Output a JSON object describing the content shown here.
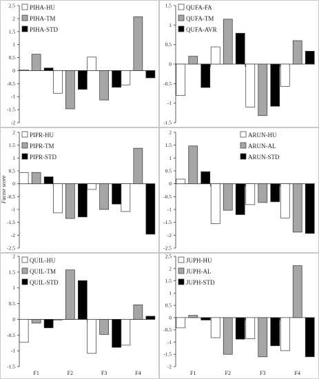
{
  "ylabel": "Factor score",
  "chart_data": [
    {
      "type": "bar",
      "categories": [
        "F1",
        "F2",
        "F3",
        "F4"
      ],
      "ylim": [
        -2,
        2.5
      ],
      "yticks": [
        -2,
        -1.5,
        -1,
        -0.5,
        0,
        0.5,
        1,
        1.5,
        2,
        2.5
      ],
      "legend_position": "top-left",
      "series": [
        {
          "name": "PIHA-HU",
          "color": "#ffffff",
          "values": [
            0.03,
            -0.87,
            0.52,
            -0.55
          ]
        },
        {
          "name": "PIHA-TM",
          "color": "#a6a6a6",
          "values": [
            0.63,
            -1.47,
            -1.13,
            2.07
          ]
        },
        {
          "name": "PIHA-STD",
          "color": "#000000",
          "values": [
            0.1,
            -0.72,
            -0.64,
            -0.28
          ]
        }
      ]
    },
    {
      "type": "bar",
      "categories": [
        "F1",
        "F2",
        "F3",
        "F4"
      ],
      "ylim": [
        -1.5,
        1.5
      ],
      "yticks": [
        -1.5,
        -1,
        -0.5,
        0,
        0.5,
        1,
        1.5
      ],
      "legend_position": "top-left",
      "series": [
        {
          "name": "QUFA-FA",
          "color": "#ffffff",
          "values": [
            -0.8,
            0.44,
            -1.1,
            -0.57
          ]
        },
        {
          "name": "QUFA-TM",
          "color": "#a6a6a6",
          "values": [
            0.2,
            1.15,
            -1.32,
            0.6
          ]
        },
        {
          "name": "QUFA-AVR",
          "color": "#000000",
          "values": [
            -0.6,
            0.79,
            -1.08,
            0.33
          ]
        }
      ]
    },
    {
      "type": "bar",
      "categories": [
        "F1",
        "F2",
        "F3",
        "F4"
      ],
      "ylim": [
        -2.5,
        2
      ],
      "yticks": [
        -2.5,
        -2,
        -1.5,
        -1,
        -0.5,
        0,
        0.5,
        1,
        1.5,
        2
      ],
      "legend_position": "top-left",
      "series": [
        {
          "name": "PIPR-HU",
          "color": "#ffffff",
          "values": [
            0.43,
            -1.13,
            -0.22,
            -1.08
          ]
        },
        {
          "name": "PIPR-TM",
          "color": "#a6a6a6",
          "values": [
            0.44,
            -1.35,
            -1.0,
            1.38
          ]
        },
        {
          "name": "PIPR-STD",
          "color": "#000000",
          "values": [
            0.27,
            -1.29,
            -0.79,
            -1.96
          ]
        }
      ]
    },
    {
      "type": "bar",
      "categories": [
        "F1",
        "F2",
        "F3",
        "F4"
      ],
      "ylim": [
        -2.5,
        2
      ],
      "yticks": [
        -2.5,
        -2,
        -1.5,
        -1,
        -0.5,
        0,
        0.5,
        1,
        1.5,
        2
      ],
      "legend_position": "top-right",
      "series": [
        {
          "name": "ARUN-HU",
          "color": "#ffffff",
          "values": [
            0.18,
            -1.55,
            -0.81,
            -1.33
          ]
        },
        {
          "name": "ARUN-AL",
          "color": "#a6a6a6",
          "values": [
            1.47,
            -1.03,
            -0.73,
            -1.88
          ]
        },
        {
          "name": "ARUN-STD",
          "color": "#000000",
          "values": [
            0.47,
            -1.2,
            -0.7,
            -1.93
          ]
        }
      ]
    },
    {
      "type": "bar",
      "categories": [
        "F1",
        "F2",
        "F3",
        "F4"
      ],
      "ylim": [
        -1.5,
        2
      ],
      "yticks": [
        -1.5,
        -1,
        -0.5,
        0,
        0.5,
        1,
        1.5,
        2
      ],
      "legend_position": "top-left",
      "series": [
        {
          "name": "QUIL-HU",
          "color": "#ffffff",
          "values": [
            -0.73,
            -0.02,
            -1.08,
            -0.82
          ]
        },
        {
          "name": "QUIL-TM",
          "color": "#a6a6a6",
          "values": [
            -0.12,
            1.57,
            -0.48,
            0.46
          ]
        },
        {
          "name": "QUIL-STD",
          "color": "#000000",
          "values": [
            -0.27,
            1.23,
            -0.89,
            0.1
          ]
        }
      ]
    },
    {
      "type": "bar",
      "categories": [
        "F1",
        "F2",
        "F3",
        "F4"
      ],
      "ylim": [
        -2,
        2.5
      ],
      "yticks": [
        -2,
        -1.5,
        -1,
        -0.5,
        0,
        0.5,
        1,
        1.5,
        2,
        2.5
      ],
      "legend_position": "top-left",
      "series": [
        {
          "name": "JUPH-HU",
          "color": "#ffffff",
          "values": [
            -0.42,
            -0.82,
            -0.86,
            -1.35
          ]
        },
        {
          "name": "JUPH-AL",
          "color": "#a6a6a6",
          "values": [
            0.09,
            -1.5,
            -1.6,
            2.12
          ]
        },
        {
          "name": "JUPH-STD",
          "color": "#000000",
          "values": [
            -0.1,
            -0.88,
            -1.15,
            -1.6
          ]
        }
      ]
    }
  ]
}
